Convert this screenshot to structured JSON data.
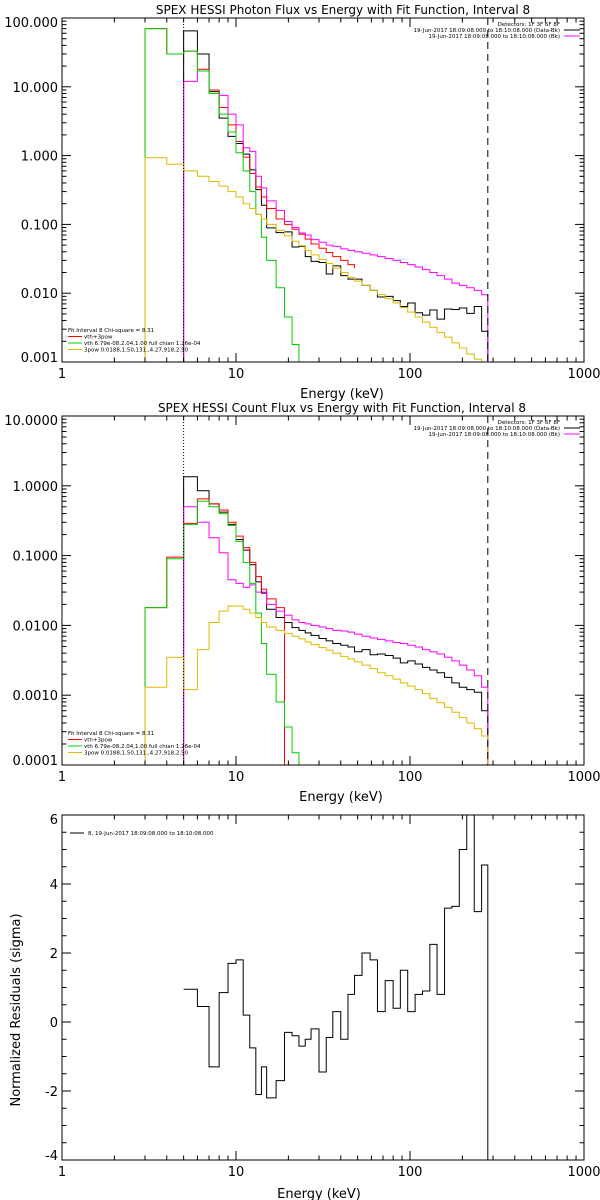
{
  "chart_data": [
    {
      "type": "line",
      "step": true,
      "title": "SPEX HESSI Photon Flux vs Energy with Fit Function, Interval 8",
      "xlabel": "Energy (keV)",
      "ylabel": "",
      "xscale": "log",
      "yscale": "log",
      "xlim": [
        1,
        1000
      ],
      "ylim": [
        0.001,
        100
      ],
      "x_tick_labels": [
        "1",
        "10",
        "100",
        "1000"
      ],
      "y_tick_values": [
        0.001,
        0.01,
        0.1,
        1,
        10,
        100
      ],
      "y_tick_labels": [
        "0.001",
        "0.010",
        "0.100",
        "1.000",
        "10.000",
        "100.000"
      ],
      "header_lines": [
        "Detectors: 1F 3F 6F 8F",
        "19-Jun-2017 18:09:08.000 to 18:10:08.000 (Data-Bk)",
        "19-Jun-2017 18:09:08.000 to 18:10:08.000 (Bk)"
      ],
      "header_colors": [
        "",
        "#000000",
        "#ff00ff"
      ],
      "fit_lines": [
        "Fit Interval 8   Chi-square = 8.31",
        "vth+3pow",
        "vth 6.79e-08,2.04,1.00  full chian 1.26e-04",
        "3pow 0.0188,1.50,131.,4.27,918,2.50"
      ],
      "fit_colors": [
        "",
        "#ff0000",
        "#00cc00",
        "#ddbb00"
      ],
      "vlines": [
        {
          "x": 5,
          "style": "dotted"
        },
        {
          "x": 280,
          "style": "dashed"
        }
      ],
      "series": [
        {
          "name": "Data-Bk",
          "color": "#000000",
          "edges": [
            5,
            6,
            7,
            8,
            9,
            10,
            11,
            12,
            13,
            14,
            15,
            17,
            19,
            21,
            23,
            25,
            27,
            30,
            33,
            36,
            40,
            44,
            48,
            53,
            59,
            65,
            72,
            80,
            88,
            97,
            107,
            118,
            130,
            143,
            158,
            174,
            192,
            212,
            234,
            258,
            280
          ],
          "values": [
            65,
            30,
            8.5,
            3.5,
            1.9,
            1.5,
            1.05,
            0.62,
            0.32,
            0.19,
            0.089,
            0.076,
            0.078,
            0.047,
            0.048,
            0.034,
            0.029,
            0.028,
            0.019,
            0.025,
            0.018,
            0.016,
            0.016,
            0.013,
            0.011,
            0.0088,
            0.009,
            0.0078,
            0.0064,
            0.0072,
            0.0052,
            0.0048,
            0.0057,
            0.0042,
            0.0059,
            0.0058,
            0.0061,
            0.0051,
            0.0064,
            0.0028
          ]
        },
        {
          "name": "vth+3pow",
          "color": "#ff0000",
          "edges": [
            3,
            4,
            5,
            6,
            7,
            8,
            9,
            10,
            11,
            12,
            13,
            14,
            15,
            17,
            19,
            21,
            23,
            25,
            27,
            30,
            33,
            36,
            40,
            44,
            48
          ],
          "values": [
            70,
            30,
            33,
            18,
            9,
            5,
            2.8,
            1.6,
            0.95,
            0.55,
            0.35,
            0.25,
            0.17,
            0.12,
            0.1,
            0.085,
            0.072,
            0.061,
            0.052,
            0.045,
            0.039,
            0.034,
            0.03,
            0.026,
            0.023
          ]
        },
        {
          "name": "Bk",
          "color": "#ff00ff",
          "edges": [
            5,
            6,
            7,
            8,
            9,
            10,
            11,
            12,
            13,
            14,
            15,
            17,
            19,
            21,
            23,
            25,
            27,
            30,
            33,
            36,
            40,
            44,
            48,
            53,
            59,
            65,
            72,
            80,
            88,
            97,
            107,
            118,
            130,
            143,
            158,
            174,
            192,
            212,
            234,
            258,
            280
          ],
          "values": [
            12,
            17,
            8,
            7.5,
            4,
            2.8,
            1.3,
            1.15,
            0.5,
            0.34,
            0.22,
            0.16,
            0.11,
            0.09,
            0.075,
            0.07,
            0.06,
            0.055,
            0.05,
            0.048,
            0.044,
            0.042,
            0.04,
            0.038,
            0.036,
            0.034,
            0.032,
            0.03,
            0.028,
            0.026,
            0.024,
            0.022,
            0.02,
            0.018,
            0.016,
            0.014,
            0.013,
            0.012,
            0.011,
            0.0095
          ]
        },
        {
          "name": "vth",
          "color": "#00cc00",
          "edges": [
            3,
            4,
            5,
            6,
            7,
            8,
            9,
            10,
            11,
            12,
            13,
            14,
            15,
            17,
            19,
            21,
            23
          ],
          "values": [
            70,
            30,
            33,
            17,
            8,
            4,
            2.2,
            1.1,
            0.6,
            0.3,
            0.14,
            0.065,
            0.03,
            0.012,
            0.0045,
            0.0018,
            0.0008
          ]
        },
        {
          "name": "3pow",
          "color": "#ddbb00",
          "edges": [
            3,
            4,
            5,
            6,
            7,
            8,
            9,
            10,
            11,
            12,
            13,
            14,
            15,
            17,
            19,
            21,
            23,
            25,
            27,
            30,
            33,
            36,
            40,
            44,
            48,
            53,
            59,
            65,
            72,
            80,
            88,
            97,
            107,
            118,
            130,
            143,
            158,
            174,
            192,
            212,
            234,
            258,
            280
          ],
          "values": [
            0.93,
            0.75,
            0.6,
            0.5,
            0.42,
            0.36,
            0.3,
            0.25,
            0.2,
            0.17,
            0.14,
            0.12,
            0.1,
            0.082,
            0.068,
            0.057,
            0.049,
            0.042,
            0.036,
            0.031,
            0.027,
            0.023,
            0.02,
            0.017,
            0.015,
            0.013,
            0.011,
            0.0096,
            0.0083,
            0.0072,
            0.0062,
            0.0053,
            0.0045,
            0.0038,
            0.0032,
            0.0027,
            0.0023,
            0.0019,
            0.0016,
            0.0013,
            0.0011,
            0.0009
          ]
        }
      ]
    },
    {
      "type": "line",
      "step": true,
      "title": "SPEX HESSI Count Flux vs Energy with Fit Function, Interval 8",
      "xlabel": "Energy (keV)",
      "ylabel": "",
      "xscale": "log",
      "yscale": "log",
      "xlim": [
        1,
        1000
      ],
      "ylim": [
        0.0001,
        10
      ],
      "x_tick_labels": [
        "1",
        "10",
        "100",
        "1000"
      ],
      "y_tick_values": [
        0.0001,
        0.001,
        0.01,
        0.1,
        1,
        10
      ],
      "y_tick_labels": [
        "0.0001",
        "0.0010",
        "0.0100",
        "0.1000",
        "1.0000",
        "10.0000"
      ],
      "header_lines": [
        "Detectors: 1F 3F 6F 8F",
        "19-Jun-2017 18:09:08.000 to 18:10:08.000 (Data-Bk)",
        "19-Jun-2017 18:09:08.000 to 18:10:08.000 (Bk)"
      ],
      "header_colors": [
        "",
        "#000000",
        "#ff00ff"
      ],
      "fit_lines": [
        "Fit Interval 8   Chi-square = 8.31",
        "vth+3pow",
        "vth 6.79e-08,2.04,1.00  full chian 1.26e-04",
        "3pow 0.0188,1.50,131.,4.27,918,2.50"
      ],
      "fit_colors": [
        "",
        "#ff0000",
        "#00cc00",
        "#ddbb00"
      ],
      "vlines": [
        {
          "x": 5,
          "style": "dotted"
        },
        {
          "x": 280,
          "style": "dashed"
        }
      ],
      "series": [
        {
          "name": "Data-Bk",
          "color": "#000000",
          "edges": [
            5,
            6,
            7,
            8,
            9,
            10,
            11,
            12,
            13,
            14,
            15,
            17,
            19,
            21,
            23,
            25,
            27,
            30,
            33,
            36,
            40,
            44,
            48,
            53,
            59,
            65,
            72,
            80,
            88,
            97,
            107,
            118,
            130,
            143,
            158,
            174,
            192,
            212,
            234,
            258,
            280
          ],
          "values": [
            1.35,
            0.85,
            0.55,
            0.42,
            0.28,
            0.17,
            0.12,
            0.074,
            0.042,
            0.029,
            0.017,
            0.013,
            0.011,
            0.0093,
            0.0085,
            0.0078,
            0.0072,
            0.0065,
            0.006,
            0.0055,
            0.0052,
            0.0049,
            0.0042,
            0.0045,
            0.0038,
            0.0039,
            0.0037,
            0.0034,
            0.0029,
            0.0031,
            0.0028,
            0.0025,
            0.0023,
            0.0021,
            0.0018,
            0.0015,
            0.0013,
            0.0012,
            0.0011,
            0.0006
          ]
        },
        {
          "name": "vth+3pow",
          "color": "#ff0000",
          "edges": [
            3,
            4,
            5,
            6,
            7,
            8,
            9,
            10,
            11,
            12,
            13,
            14,
            15,
            17,
            19
          ],
          "values": [
            0.018,
            0.095,
            0.29,
            0.65,
            0.55,
            0.45,
            0.3,
            0.19,
            0.13,
            0.08,
            0.05,
            0.033,
            0.024,
            0.018
          ]
        },
        {
          "name": "Bk",
          "color": "#ff00ff",
          "edges": [
            5,
            6,
            7,
            8,
            9,
            10,
            11,
            12,
            13,
            14,
            15,
            17,
            19,
            21,
            23,
            25,
            27,
            30,
            33,
            36,
            40,
            44,
            48,
            53,
            59,
            65,
            72,
            80,
            88,
            97,
            107,
            118,
            130,
            143,
            158,
            174,
            192,
            212,
            234,
            258,
            280
          ],
          "values": [
            0.5,
            0.3,
            0.18,
            0.11,
            0.045,
            0.04,
            0.035,
            0.038,
            0.03,
            0.03,
            0.02,
            0.016,
            0.014,
            0.012,
            0.011,
            0.0105,
            0.01,
            0.0095,
            0.009,
            0.0085,
            0.0083,
            0.008,
            0.0075,
            0.007,
            0.0066,
            0.0063,
            0.006,
            0.0057,
            0.0055,
            0.0052,
            0.0049,
            0.0045,
            0.0042,
            0.0039,
            0.0035,
            0.0031,
            0.0027,
            0.0023,
            0.0019,
            0.0013
          ]
        },
        {
          "name": "vth",
          "color": "#00cc00",
          "edges": [
            3,
            4,
            5,
            6,
            7,
            8,
            9,
            10,
            11,
            12,
            13,
            14,
            15,
            17,
            19,
            21,
            23
          ],
          "values": [
            0.018,
            0.09,
            0.28,
            0.6,
            0.5,
            0.4,
            0.27,
            0.16,
            0.08,
            0.04,
            0.015,
            0.0055,
            0.002,
            0.0008,
            0.00035,
            0.00015
          ]
        },
        {
          "name": "3pow",
          "color": "#ddbb00",
          "edges": [
            3,
            4,
            5,
            6,
            7,
            8,
            9,
            10,
            11,
            12,
            13,
            14,
            15,
            17,
            19,
            21,
            23,
            25,
            27,
            30,
            33,
            36,
            40,
            44,
            48,
            53,
            59,
            65,
            72,
            80,
            88,
            97,
            107,
            118,
            130,
            143,
            158,
            174,
            192,
            212,
            234,
            258,
            280
          ],
          "values": [
            0.0013,
            0.0035,
            0.0012,
            0.0045,
            0.011,
            0.016,
            0.019,
            0.019,
            0.017,
            0.015,
            0.013,
            0.011,
            0.0095,
            0.0085,
            0.0077,
            0.007,
            0.0064,
            0.0058,
            0.0053,
            0.0048,
            0.0044,
            0.004,
            0.0036,
            0.0033,
            0.003,
            0.0027,
            0.0024,
            0.0021,
            0.0019,
            0.0017,
            0.0015,
            0.00135,
            0.0012,
            0.00105,
            0.0009,
            0.00078,
            0.00067,
            0.00057,
            0.00048,
            0.0004,
            0.00033,
            0.00026
          ]
        }
      ]
    },
    {
      "type": "line",
      "step": true,
      "title": "",
      "xlabel": "Energy (keV)",
      "ylabel": "Normalized Residuals (sigma)",
      "xscale": "log",
      "yscale": "linear",
      "xlim": [
        1,
        1000
      ],
      "ylim": [
        -4,
        6
      ],
      "x_tick_labels": [
        "1",
        "10",
        "100",
        "1000"
      ],
      "y_tick_values": [
        -4,
        -2,
        0,
        2,
        4,
        6
      ],
      "y_tick_labels": [
        "-4",
        "-2",
        "0",
        "2",
        "4",
        "6"
      ],
      "legend_text": "8, 19-Jun-2017 18:09:08.000 to 18:10:08.000",
      "series": [
        {
          "name": "8, 19-Jun-2017 18:09:08.000 to 18:10:08.000",
          "color": "#000000",
          "edges": [
            5,
            6,
            7,
            8,
            9,
            10,
            11,
            12,
            13,
            14,
            15,
            17,
            19,
            21,
            23,
            25,
            27,
            30,
            33,
            36,
            40,
            44,
            48,
            53,
            59,
            65,
            72,
            80,
            88,
            97,
            107,
            118,
            130,
            143,
            158,
            174,
            192,
            212,
            234,
            258,
            280
          ],
          "values": [
            0.95,
            0.45,
            -1.3,
            0.85,
            1.7,
            1.8,
            0.2,
            -0.75,
            -2.1,
            -1.3,
            -2.2,
            -1.7,
            -0.3,
            -0.4,
            -0.7,
            -0.5,
            -0.2,
            -1.45,
            -0.45,
            0.3,
            -0.5,
            0.8,
            1.35,
            2.0,
            1.8,
            0.3,
            1.2,
            0.4,
            1.5,
            0.3,
            0.8,
            0.9,
            2.25,
            0.8,
            3.3,
            3.35,
            5.0,
            6.0,
            3.2,
            4.55
          ]
        }
      ]
    }
  ]
}
